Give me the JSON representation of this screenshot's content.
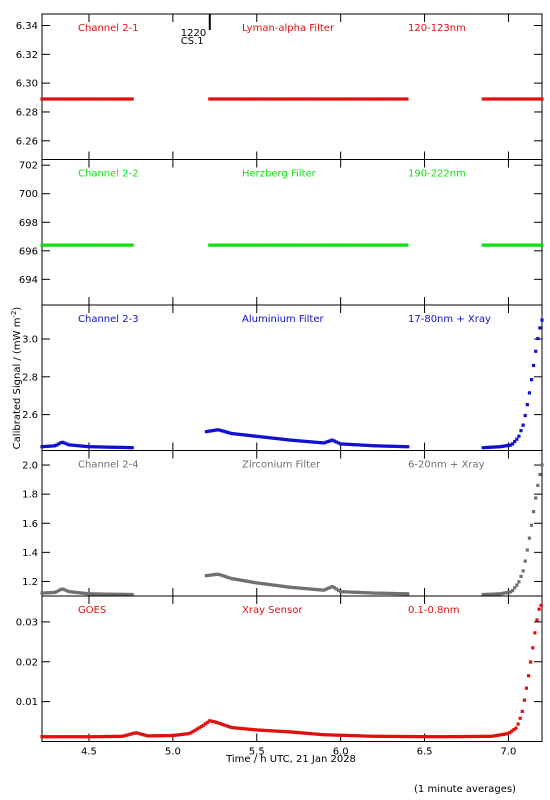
{
  "figure": {
    "ylabel": "Calibrated Signal / (mW m",
    "ylabel_sup": "-2",
    "ylabel_close": ")",
    "xlabel": "Time / h UTC, 21 Jan 2028",
    "footnote": "(1 minute averages)",
    "marker": {
      "label1": "1220",
      "label2": "CS.1",
      "x": 5.22
    }
  },
  "colors": {
    "red": "#e01010",
    "green": "#10e010",
    "blue": "#1010d0",
    "grey": "#707070",
    "black": "#000000"
  },
  "chart_data": [
    {
      "type": "scatter",
      "labels": [
        "Channel 2-1",
        "Lyman-alpha Filter",
        "120-123nm"
      ],
      "color": "red",
      "xlim": [
        4.22,
        7.2
      ],
      "ylim": [
        6.247,
        6.348
      ],
      "yticks": [
        6.26,
        6.28,
        6.3,
        6.32,
        6.34
      ],
      "ytick_labels": [
        "6.26",
        "6.28",
        "6.30",
        "6.32",
        "6.34"
      ],
      "segments": [
        {
          "x0": 4.22,
          "x1": 4.76,
          "points": [
            [
              4.22,
              6.289
            ],
            [
              4.76,
              6.289
            ]
          ]
        },
        {
          "x0": 5.22,
          "x1": 6.4,
          "points": [
            [
              5.22,
              6.289
            ],
            [
              6.4,
              6.289
            ]
          ]
        },
        {
          "x0": 6.85,
          "x1": 7.2,
          "points": [
            [
              6.85,
              6.289
            ],
            [
              7.2,
              6.289
            ]
          ]
        }
      ]
    },
    {
      "type": "scatter",
      "labels": [
        "Channel 2-2",
        "Herzberg Filter",
        "190-222nm"
      ],
      "color": "green",
      "xlim": [
        4.22,
        7.2
      ],
      "ylim": [
        692.2,
        702.4
      ],
      "yticks": [
        694,
        696,
        698,
        700,
        702
      ],
      "ytick_labels": [
        "694",
        "696",
        "698",
        "700",
        "702"
      ],
      "segments": [
        {
          "x0": 4.22,
          "x1": 4.76,
          "points": [
            [
              4.22,
              696.4
            ],
            [
              4.76,
              696.4
            ]
          ]
        },
        {
          "x0": 5.22,
          "x1": 6.4,
          "points": [
            [
              5.22,
              696.4
            ],
            [
              6.4,
              696.4
            ]
          ]
        },
        {
          "x0": 6.85,
          "x1": 7.2,
          "points": [
            [
              6.85,
              696.4
            ],
            [
              7.2,
              696.4
            ]
          ]
        }
      ]
    },
    {
      "type": "scatter",
      "labels": [
        "Channel 2-3",
        "Aluminium Filter",
        "17-80nm + Xray"
      ],
      "color": "blue",
      "xlim": [
        4.22,
        7.2
      ],
      "ylim": [
        2.41,
        3.18
      ],
      "yticks": [
        2.6,
        2.8,
        3.0
      ],
      "ytick_labels": [
        "2.6",
        "2.8",
        "3.0"
      ],
      "segments": [
        {
          "x0": 4.22,
          "x1": 4.76,
          "points": [
            [
              4.22,
              2.43
            ],
            [
              4.3,
              2.435
            ],
            [
              4.34,
              2.455
            ],
            [
              4.38,
              2.44
            ],
            [
              4.5,
              2.43
            ],
            [
              4.76,
              2.425
            ]
          ]
        },
        {
          "x0": 5.2,
          "x1": 6.4,
          "points": [
            [
              5.2,
              2.51
            ],
            [
              5.27,
              2.52
            ],
            [
              5.35,
              2.5
            ],
            [
              5.5,
              2.485
            ],
            [
              5.7,
              2.465
            ],
            [
              5.9,
              2.45
            ],
            [
              5.95,
              2.465
            ],
            [
              6.0,
              2.445
            ],
            [
              6.2,
              2.435
            ],
            [
              6.4,
              2.43
            ]
          ]
        },
        {
          "x0": 6.85,
          "x1": 7.2,
          "points": [
            [
              6.85,
              2.425
            ],
            [
              6.95,
              2.43
            ],
            [
              7.02,
              2.44
            ],
            [
              7.06,
              2.48
            ],
            [
              7.09,
              2.55
            ],
            [
              7.11,
              2.64
            ],
            [
              7.13,
              2.74
            ],
            [
              7.15,
              2.86
            ],
            [
              7.17,
              2.98
            ],
            [
              7.19,
              3.07
            ],
            [
              7.2,
              3.1
            ]
          ]
        }
      ]
    },
    {
      "type": "scatter",
      "labels": [
        "Channel 2-4",
        "Zirconium Filter",
        "6-20nm + Xray"
      ],
      "color": "grey",
      "xlim": [
        4.22,
        7.2
      ],
      "ylim": [
        1.1,
        2.1
      ],
      "yticks": [
        1.2,
        1.4,
        1.6,
        1.8,
        2.0
      ],
      "ytick_labels": [
        "1.2",
        "1.4",
        "1.6",
        "1.8",
        "2.0"
      ],
      "segments": [
        {
          "x0": 4.22,
          "x1": 4.76,
          "points": [
            [
              4.22,
              1.12
            ],
            [
              4.3,
              1.125
            ],
            [
              4.34,
              1.15
            ],
            [
              4.38,
              1.13
            ],
            [
              4.5,
              1.115
            ],
            [
              4.76,
              1.11
            ]
          ]
        },
        {
          "x0": 5.2,
          "x1": 6.4,
          "points": [
            [
              5.2,
              1.24
            ],
            [
              5.27,
              1.25
            ],
            [
              5.35,
              1.22
            ],
            [
              5.5,
              1.19
            ],
            [
              5.7,
              1.16
            ],
            [
              5.9,
              1.14
            ],
            [
              5.95,
              1.165
            ],
            [
              6.0,
              1.13
            ],
            [
              6.2,
              1.12
            ],
            [
              6.4,
              1.115
            ]
          ]
        },
        {
          "x0": 6.85,
          "x1": 7.2,
          "points": [
            [
              6.85,
              1.11
            ],
            [
              6.95,
              1.115
            ],
            [
              7.02,
              1.13
            ],
            [
              7.06,
              1.19
            ],
            [
              7.09,
              1.28
            ],
            [
              7.11,
              1.4
            ],
            [
              7.13,
              1.53
            ],
            [
              7.15,
              1.68
            ],
            [
              7.17,
              1.83
            ],
            [
              7.19,
              1.95
            ],
            [
              7.2,
              2.0
            ]
          ]
        }
      ]
    },
    {
      "type": "scatter",
      "labels": [
        "GOES",
        "Xray Sensor",
        "0.1-0.8nm"
      ],
      "color": "red",
      "xlim": [
        4.22,
        7.2
      ],
      "ylim": [
        0.0,
        0.0365
      ],
      "yticks": [
        0.01,
        0.02,
        0.03
      ],
      "ytick_labels": [
        "0.01",
        "0.02",
        "0.03"
      ],
      "xticks": [
        4.5,
        5.0,
        5.5,
        6.0,
        6.5,
        7.0
      ],
      "xtick_labels": [
        "4.5",
        "5.0",
        "5.5",
        "6.0",
        "6.5",
        "7.0"
      ],
      "segments": [
        {
          "x0": 4.22,
          "x1": 7.2,
          "points": [
            [
              4.22,
              0.0012
            ],
            [
              4.5,
              0.0012
            ],
            [
              4.7,
              0.0013
            ],
            [
              4.78,
              0.0022
            ],
            [
              4.85,
              0.0014
            ],
            [
              5.0,
              0.0015
            ],
            [
              5.1,
              0.002
            ],
            [
              5.18,
              0.004
            ],
            [
              5.22,
              0.0052
            ],
            [
              5.26,
              0.0048
            ],
            [
              5.35,
              0.0035
            ],
            [
              5.5,
              0.0029
            ],
            [
              5.7,
              0.0024
            ],
            [
              5.9,
              0.0017
            ],
            [
              6.2,
              0.0013
            ],
            [
              6.6,
              0.0012
            ],
            [
              6.9,
              0.0013
            ],
            [
              7.0,
              0.002
            ],
            [
              7.05,
              0.0035
            ],
            [
              7.08,
              0.007
            ],
            [
              7.1,
              0.0115
            ],
            [
              7.12,
              0.0165
            ],
            [
              7.14,
              0.022
            ],
            [
              7.16,
              0.028
            ],
            [
              7.18,
              0.033
            ],
            [
              7.2,
              0.0345
            ]
          ]
        }
      ]
    }
  ]
}
